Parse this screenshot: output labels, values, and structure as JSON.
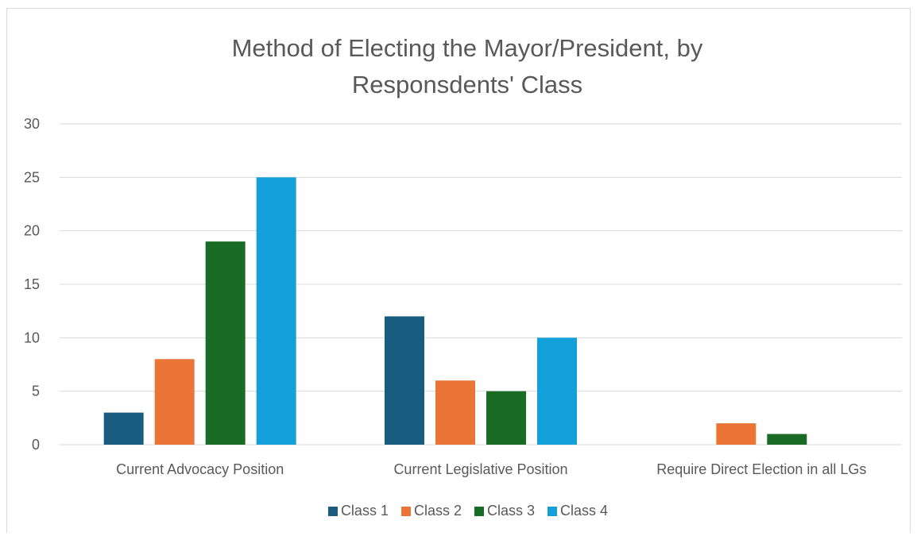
{
  "chart_data": {
    "type": "bar",
    "title_line1": "Method of Electing the Mayor/President, by",
    "title_line2": "Responsdents' Class",
    "categories": [
      "Current Advocacy Position",
      "Current Legislative Position",
      "Require Direct Election in all LGs"
    ],
    "series": [
      {
        "name": "Class 1",
        "color": "#1a5c80",
        "values": [
          3,
          12,
          0
        ]
      },
      {
        "name": "Class 2",
        "color": "#ea7536",
        "values": [
          8,
          6,
          2
        ]
      },
      {
        "name": "Class 3",
        "color": "#1a6b26",
        "values": [
          19,
          5,
          1
        ]
      },
      {
        "name": "Class 4",
        "color": "#139fd8",
        "values": [
          25,
          10,
          0
        ]
      }
    ],
    "yticks": [
      "0",
      "5",
      "10",
      "15",
      "20",
      "25",
      "30"
    ],
    "ylim": [
      0,
      30
    ],
    "grid": true,
    "legend_position": "bottom"
  }
}
